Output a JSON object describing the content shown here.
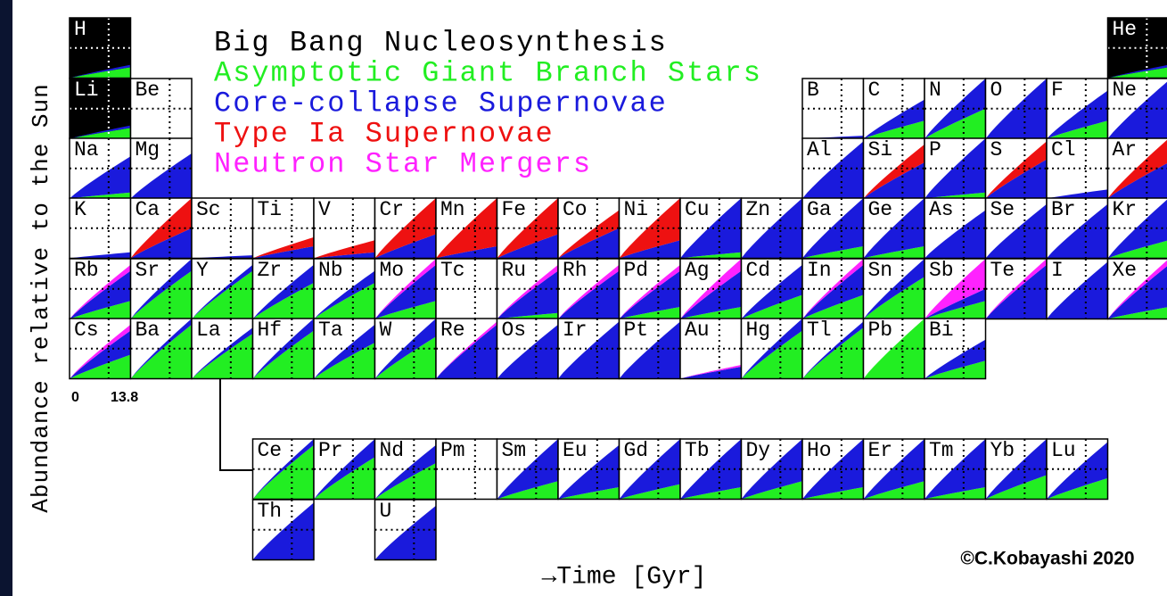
{
  "legend": [
    {
      "text": "Big Bang Nucleosynthesis",
      "color": "#000000"
    },
    {
      "text": "Asymptotic Giant Branch Stars",
      "color": "#22ee22"
    },
    {
      "text": "Core-collapse Supernovae",
      "color": "#1a1adc"
    },
    {
      "text": "Type Ia Supernovae",
      "color": "#ee1111"
    },
    {
      "text": "Neutron Star Mergers",
      "color": "#ff22ff"
    }
  ],
  "y_label": "Abundance relative to the Sun",
  "x_label": "→Time [Gyr]",
  "x_start": "0",
  "x_end": "13.8",
  "credit": "©C.Kobayashi 2020",
  "cells": [
    "H",
    "He",
    "Li",
    "Be",
    "B",
    "C",
    "N",
    "O",
    "F",
    "Ne",
    "Na",
    "Mg",
    "Al",
    "Si",
    "P",
    "S",
    "Cl",
    "Ar",
    "K",
    "Ca",
    "Sc",
    "Ti",
    "V",
    "Cr",
    "Mn",
    "Fe",
    "Co",
    "Ni",
    "Cu",
    "Zn",
    "Ga",
    "Ge",
    "As",
    "Se",
    "Br",
    "Kr",
    "Rb",
    "Sr",
    "Y",
    "Zr",
    "Nb",
    "Mo",
    "Tc",
    "Ru",
    "Rh",
    "Pd",
    "Ag",
    "Cd",
    "In",
    "Sn",
    "Sb",
    "Te",
    "I",
    "Xe",
    "Cs",
    "Ba",
    "La",
    "Hf",
    "Ta",
    "W",
    "Re",
    "Os",
    "Ir",
    "Pt",
    "Au",
    "Hg",
    "Tl",
    "Pb",
    "Bi",
    "Ce",
    "Pr",
    "Nd",
    "Pm",
    "Sm",
    "Eu",
    "Gd",
    "Tb",
    "Dy",
    "Ho",
    "Er",
    "Tm",
    "Yb",
    "Lu",
    "Th",
    "U"
  ]
}
